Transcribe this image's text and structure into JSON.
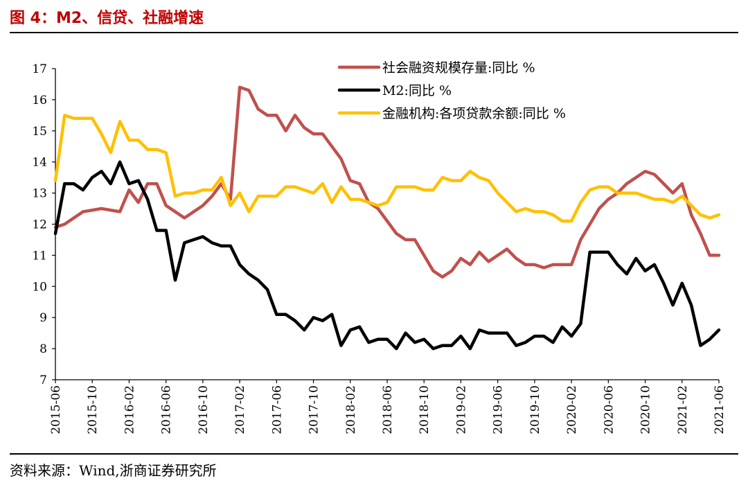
{
  "figure": {
    "title": "图 4：M2、信贷、社融增速",
    "source": "资料来源：Wind,浙商证券研究所"
  },
  "chart_data": {
    "type": "line",
    "xlabel": "",
    "ylabel": "",
    "ylim": [
      7,
      17
    ],
    "yticks": [
      7,
      8,
      9,
      10,
      11,
      12,
      13,
      14,
      15,
      16,
      17
    ],
    "x_tick_labels": [
      "2015-06",
      "2015-10",
      "2016-02",
      "2016-06",
      "2016-10",
      "2017-02",
      "2017-06",
      "2017-10",
      "2018-02",
      "2018-06",
      "2018-10",
      "2019-02",
      "2019-06",
      "2019-10",
      "2020-02",
      "2020-06",
      "2020-10",
      "2021-02",
      "2021-06"
    ],
    "legend_position": "top-right",
    "grid": false,
    "series": [
      {
        "name": "社会融资规模存量:同比 %",
        "color": "#c0504d",
        "points": [
          [
            "2015-06",
            11.9
          ],
          [
            "2015-07",
            12.0
          ],
          [
            "2015-09",
            12.4
          ],
          [
            "2015-11",
            12.5
          ],
          [
            "2016-01",
            12.4
          ],
          [
            "2016-02",
            13.1
          ],
          [
            "2016-03",
            12.7
          ],
          [
            "2016-04",
            13.3
          ],
          [
            "2016-05",
            13.3
          ],
          [
            "2016-06",
            12.6
          ],
          [
            "2016-08",
            12.2
          ],
          [
            "2016-10",
            12.6
          ],
          [
            "2016-11",
            12.9
          ],
          [
            "2016-12",
            13.3
          ],
          [
            "2017-01",
            12.8
          ],
          [
            "2017-02",
            16.4
          ],
          [
            "2017-03",
            16.3
          ],
          [
            "2017-04",
            15.7
          ],
          [
            "2017-05",
            15.5
          ],
          [
            "2017-06",
            15.5
          ],
          [
            "2017-07",
            15.0
          ],
          [
            "2017-08",
            15.5
          ],
          [
            "2017-09",
            15.1
          ],
          [
            "2017-10",
            14.9
          ],
          [
            "2017-11",
            14.9
          ],
          [
            "2017-12",
            14.5
          ],
          [
            "2018-01",
            14.1
          ],
          [
            "2018-02",
            13.4
          ],
          [
            "2018-03",
            13.3
          ],
          [
            "2018-04",
            12.7
          ],
          [
            "2018-05",
            12.5
          ],
          [
            "2018-06",
            12.1
          ],
          [
            "2018-07",
            11.7
          ],
          [
            "2018-08",
            11.5
          ],
          [
            "2018-09",
            11.5
          ],
          [
            "2018-10",
            11.0
          ],
          [
            "2018-11",
            10.5
          ],
          [
            "2018-12",
            10.3
          ],
          [
            "2019-01",
            10.5
          ],
          [
            "2019-02",
            10.9
          ],
          [
            "2019-03",
            10.7
          ],
          [
            "2019-04",
            11.1
          ],
          [
            "2019-05",
            10.8
          ],
          [
            "2019-06",
            11.0
          ],
          [
            "2019-07",
            11.2
          ],
          [
            "2019-08",
            10.9
          ],
          [
            "2019-09",
            10.7
          ],
          [
            "2019-10",
            10.7
          ],
          [
            "2019-11",
            10.6
          ],
          [
            "2019-12",
            10.7
          ],
          [
            "2020-01",
            10.7
          ],
          [
            "2020-02",
            10.7
          ],
          [
            "2020-03",
            11.5
          ],
          [
            "2020-04",
            12.0
          ],
          [
            "2020-05",
            12.5
          ],
          [
            "2020-06",
            12.8
          ],
          [
            "2020-07",
            13.0
          ],
          [
            "2020-08",
            13.3
          ],
          [
            "2020-09",
            13.5
          ],
          [
            "2020-10",
            13.7
          ],
          [
            "2020-11",
            13.6
          ],
          [
            "2020-12",
            13.3
          ],
          [
            "2021-01",
            13.0
          ],
          [
            "2021-02",
            13.3
          ],
          [
            "2021-03",
            12.3
          ],
          [
            "2021-04",
            11.7
          ],
          [
            "2021-05",
            11.0
          ],
          [
            "2021-06",
            11.0
          ]
        ]
      },
      {
        "name": "M2:同比 %",
        "color": "#000000",
        "points": [
          [
            "2015-06",
            11.7
          ],
          [
            "2015-07",
            13.3
          ],
          [
            "2015-08",
            13.3
          ],
          [
            "2015-09",
            13.1
          ],
          [
            "2015-10",
            13.5
          ],
          [
            "2015-11",
            13.7
          ],
          [
            "2015-12",
            13.3
          ],
          [
            "2016-01",
            14.0
          ],
          [
            "2016-02",
            13.3
          ],
          [
            "2016-03",
            13.4
          ],
          [
            "2016-04",
            12.8
          ],
          [
            "2016-05",
            11.8
          ],
          [
            "2016-06",
            11.8
          ],
          [
            "2016-07",
            10.2
          ],
          [
            "2016-08",
            11.4
          ],
          [
            "2016-09",
            11.5
          ],
          [
            "2016-10",
            11.6
          ],
          [
            "2016-11",
            11.4
          ],
          [
            "2016-12",
            11.3
          ],
          [
            "2017-01",
            11.3
          ],
          [
            "2017-02",
            10.7
          ],
          [
            "2017-03",
            10.4
          ],
          [
            "2017-04",
            10.2
          ],
          [
            "2017-05",
            9.9
          ],
          [
            "2017-06",
            9.1
          ],
          [
            "2017-07",
            9.1
          ],
          [
            "2017-08",
            8.9
          ],
          [
            "2017-09",
            8.6
          ],
          [
            "2017-10",
            9.0
          ],
          [
            "2017-11",
            8.9
          ],
          [
            "2017-12",
            9.1
          ],
          [
            "2018-01",
            8.1
          ],
          [
            "2018-02",
            8.6
          ],
          [
            "2018-03",
            8.7
          ],
          [
            "2018-04",
            8.2
          ],
          [
            "2018-05",
            8.3
          ],
          [
            "2018-06",
            8.3
          ],
          [
            "2018-07",
            8.0
          ],
          [
            "2018-08",
            8.5
          ],
          [
            "2018-09",
            8.2
          ],
          [
            "2018-10",
            8.3
          ],
          [
            "2018-11",
            8.0
          ],
          [
            "2018-12",
            8.1
          ],
          [
            "2019-01",
            8.1
          ],
          [
            "2019-02",
            8.4
          ],
          [
            "2019-03",
            8.0
          ],
          [
            "2019-04",
            8.6
          ],
          [
            "2019-05",
            8.5
          ],
          [
            "2019-06",
            8.5
          ],
          [
            "2019-07",
            8.5
          ],
          [
            "2019-08",
            8.1
          ],
          [
            "2019-09",
            8.2
          ],
          [
            "2019-10",
            8.4
          ],
          [
            "2019-11",
            8.4
          ],
          [
            "2019-12",
            8.2
          ],
          [
            "2020-01",
            8.7
          ],
          [
            "2020-02",
            8.4
          ],
          [
            "2020-03",
            8.8
          ],
          [
            "2020-04",
            11.1
          ],
          [
            "2020-05",
            11.1
          ],
          [
            "2020-06",
            11.1
          ],
          [
            "2020-07",
            10.7
          ],
          [
            "2020-08",
            10.4
          ],
          [
            "2020-09",
            10.9
          ],
          [
            "2020-10",
            10.5
          ],
          [
            "2020-11",
            10.7
          ],
          [
            "2020-12",
            10.1
          ],
          [
            "2021-01",
            9.4
          ],
          [
            "2021-02",
            10.1
          ],
          [
            "2021-03",
            9.4
          ],
          [
            "2021-04",
            8.1
          ],
          [
            "2021-05",
            8.3
          ],
          [
            "2021-06",
            8.6
          ]
        ]
      },
      {
        "name": "金融机构:各项贷款余额:同比 %",
        "color": "#ffc000",
        "points": [
          [
            "2015-06",
            13.4
          ],
          [
            "2015-07",
            15.5
          ],
          [
            "2015-08",
            15.4
          ],
          [
            "2015-09",
            15.4
          ],
          [
            "2015-10",
            15.4
          ],
          [
            "2015-11",
            14.9
          ],
          [
            "2015-12",
            14.3
          ],
          [
            "2016-01",
            15.3
          ],
          [
            "2016-02",
            14.7
          ],
          [
            "2016-03",
            14.7
          ],
          [
            "2016-04",
            14.4
          ],
          [
            "2016-05",
            14.4
          ],
          [
            "2016-06",
            14.3
          ],
          [
            "2016-07",
            12.9
          ],
          [
            "2016-08",
            13.0
          ],
          [
            "2016-09",
            13.0
          ],
          [
            "2016-10",
            13.1
          ],
          [
            "2016-11",
            13.1
          ],
          [
            "2016-12",
            13.5
          ],
          [
            "2017-01",
            12.6
          ],
          [
            "2017-02",
            13.0
          ],
          [
            "2017-03",
            12.4
          ],
          [
            "2017-04",
            12.9
          ],
          [
            "2017-05",
            12.9
          ],
          [
            "2017-06",
            12.9
          ],
          [
            "2017-07",
            13.2
          ],
          [
            "2017-08",
            13.2
          ],
          [
            "2017-09",
            13.1
          ],
          [
            "2017-10",
            13.0
          ],
          [
            "2017-11",
            13.3
          ],
          [
            "2017-12",
            12.7
          ],
          [
            "2018-01",
            13.2
          ],
          [
            "2018-02",
            12.8
          ],
          [
            "2018-03",
            12.8
          ],
          [
            "2018-04",
            12.7
          ],
          [
            "2018-05",
            12.6
          ],
          [
            "2018-06",
            12.7
          ],
          [
            "2018-07",
            13.2
          ],
          [
            "2018-08",
            13.2
          ],
          [
            "2018-09",
            13.2
          ],
          [
            "2018-10",
            13.1
          ],
          [
            "2018-11",
            13.1
          ],
          [
            "2018-12",
            13.5
          ],
          [
            "2019-01",
            13.4
          ],
          [
            "2019-02",
            13.4
          ],
          [
            "2019-03",
            13.7
          ],
          [
            "2019-04",
            13.5
          ],
          [
            "2019-05",
            13.4
          ],
          [
            "2019-06",
            13.0
          ],
          [
            "2019-07",
            12.7
          ],
          [
            "2019-08",
            12.4
          ],
          [
            "2019-09",
            12.5
          ],
          [
            "2019-10",
            12.4
          ],
          [
            "2019-11",
            12.4
          ],
          [
            "2019-12",
            12.3
          ],
          [
            "2020-01",
            12.1
          ],
          [
            "2020-02",
            12.1
          ],
          [
            "2020-03",
            12.7
          ],
          [
            "2020-04",
            13.1
          ],
          [
            "2020-05",
            13.2
          ],
          [
            "2020-06",
            13.2
          ],
          [
            "2020-07",
            13.0
          ],
          [
            "2020-08",
            13.0
          ],
          [
            "2020-09",
            13.0
          ],
          [
            "2020-10",
            12.9
          ],
          [
            "2020-11",
            12.8
          ],
          [
            "2020-12",
            12.8
          ],
          [
            "2021-01",
            12.7
          ],
          [
            "2021-02",
            12.9
          ],
          [
            "2021-03",
            12.6
          ],
          [
            "2021-04",
            12.3
          ],
          [
            "2021-05",
            12.2
          ],
          [
            "2021-06",
            12.3
          ]
        ]
      }
    ]
  }
}
